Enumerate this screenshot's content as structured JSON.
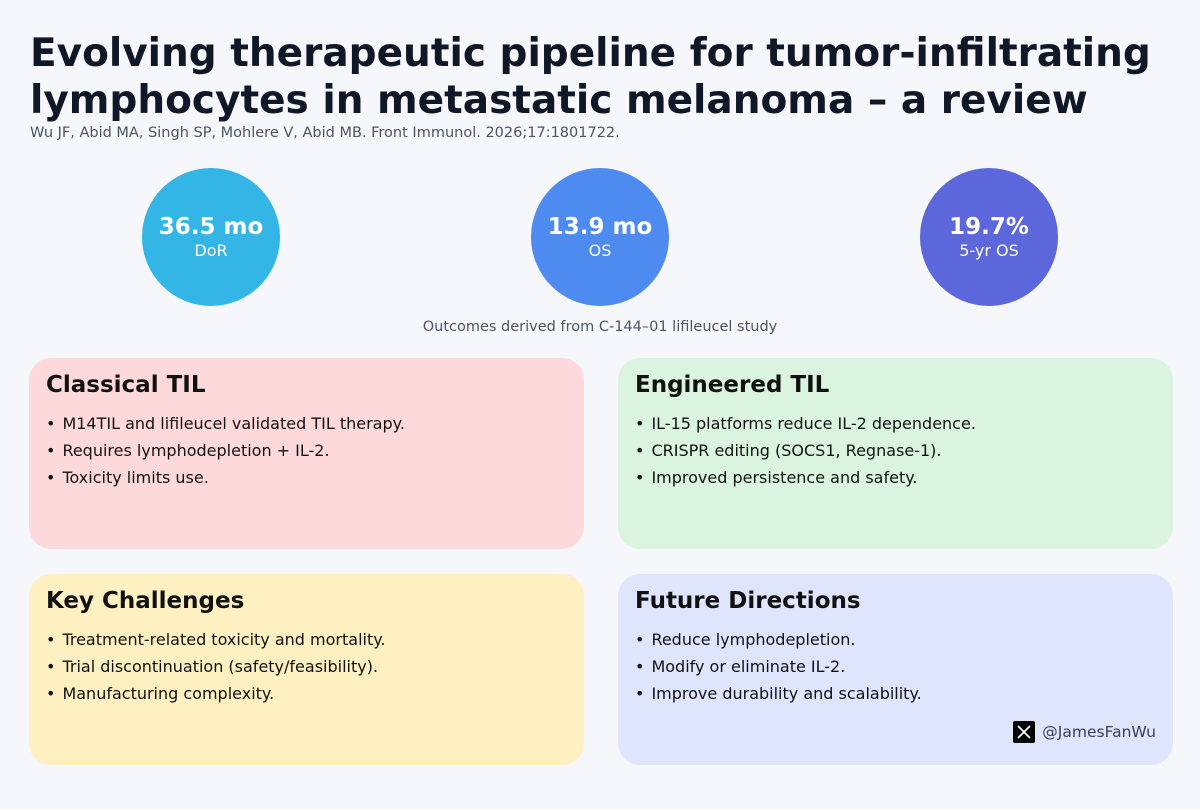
{
  "header": {
    "title_line1": "Evolving therapeutic pipeline for tumor-infiltrating",
    "title_line2": "lymphocytes in metastatic melanoma – a review",
    "citation": "Wu JF, Abid MA, Singh SP, Mohlere V, Abid MB. Front Immunol. 2026;17:1801722."
  },
  "stats": [
    {
      "value": "36.5 mo",
      "label": "DoR",
      "color": "#33b5e6"
    },
    {
      "value": "13.9 mo",
      "label": "OS",
      "color": "#4e8bf0"
    },
    {
      "value": "19.7%",
      "label": "5-yr OS",
      "color": "#5b67db"
    }
  ],
  "stats_note": "Outcomes derived from C-144–01 lifileucel study",
  "cards": [
    {
      "title": "Classical TIL",
      "color": "#fdd9db",
      "items": [
        "M14TIL and lifileucel validated TIL therapy.",
        "Requires lymphodepletion + IL-2.",
        "Toxicity limits use."
      ]
    },
    {
      "title": "Engineered TIL",
      "color": "#daf4df",
      "items": [
        "IL-15 platforms reduce IL-2 dependence.",
        "CRISPR editing (SOCS1, Regnase-1).",
        "Improved persistence and safety."
      ]
    },
    {
      "title": "Key Challenges",
      "color": "#fef0c0",
      "items": [
        "Treatment-related toxicity and mortality.",
        "Trial discontinuation (safety/feasibility).",
        "Manufacturing complexity."
      ]
    },
    {
      "title": "Future Directions",
      "color": "#e0e5fe",
      "items": [
        "Reduce lymphodepletion.",
        "Modify or eliminate IL-2.",
        "Improve durability and scalability."
      ]
    }
  ],
  "footer": {
    "icon": "x-logo-icon",
    "handle": "@JamesFanWu"
  }
}
